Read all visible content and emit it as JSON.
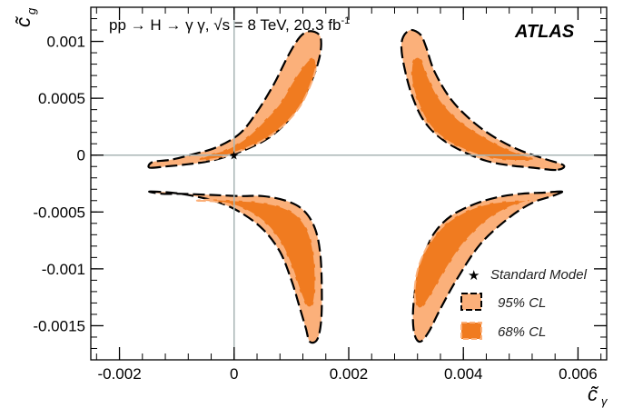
{
  "chart_data": {
    "type": "contour",
    "header": "pp → H → γ γ, √s = 8 TeV, 20.3 fb",
    "header_superscript": "-1",
    "experiment": "ATLAS",
    "xlabel": "c̃",
    "xlabel_sub": "γ",
    "ylabel": "c̃",
    "ylabel_sub": "g",
    "xlim": [
      -0.0025,
      0.0065
    ],
    "ylim": [
      -0.0018,
      0.0013
    ],
    "x_ticks": [
      -0.002,
      0,
      0.002,
      0.004,
      0.006
    ],
    "x_tick_labels": [
      "-0.002",
      "0",
      "0.002",
      "0.004",
      "0.006"
    ],
    "y_ticks": [
      -0.0015,
      -0.001,
      -0.0005,
      0,
      0.0005,
      0.001
    ],
    "y_tick_labels": [
      "-0.0015",
      "-0.001",
      "-0.0005",
      "0",
      "0.0005",
      "0.001"
    ],
    "reference_lines": {
      "x": 0,
      "y": 0
    },
    "standard_model_point": {
      "x": 0,
      "y": 0,
      "label": "Standard Model"
    },
    "colors": {
      "cl95": "#fbb07a",
      "cl68": "#f07b20",
      "outline": "#000000",
      "refline": "#a8b5b5"
    },
    "legend": {
      "placement": "bottom-right",
      "entries": [
        {
          "key": "sm",
          "label": "Standard Model"
        },
        {
          "key": "cl95",
          "label": "95% CL"
        },
        {
          "key": "cl68",
          "label": "68% CL"
        }
      ]
    },
    "regions": [
      {
        "name": "upper-left",
        "cl95": [
          [
            -0.00148,
            -0.00011
          ],
          [
            -0.0012,
            -0.0001
          ],
          [
            -0.0008,
            -8e-05
          ],
          [
            -0.0004,
            -5e-05
          ],
          [
            0,
            1e-05
          ],
          [
            0.0003,
            7e-05
          ],
          [
            0.0006,
            0.00015
          ],
          [
            0.0009,
            0.00028
          ],
          [
            0.00115,
            0.00045
          ],
          [
            0.00135,
            0.00065
          ],
          [
            0.00148,
            0.00084
          ],
          [
            0.00152,
            0.00098
          ],
          [
            0.00148,
            0.00106
          ],
          [
            0.00132,
            0.00109
          ],
          [
            0.00115,
            0.00104
          ],
          [
            0.00095,
            0.00088
          ],
          [
            0.0007,
            0.00063
          ],
          [
            0.0004,
            0.00038
          ],
          [
            0.0001,
            0.00019
          ],
          [
            -0.0003,
            7e-05
          ],
          [
            -0.0007,
            1e-05
          ],
          [
            -0.0011,
            -4e-05
          ],
          [
            -0.00142,
            -6e-05
          ]
        ],
        "cl68": [
          [
            -0.00065,
            -5e-05
          ],
          [
            -0.0003,
            -3e-05
          ],
          [
            0,
            2e-05
          ],
          [
            0.0003,
            8e-05
          ],
          [
            0.0006,
            0.00016
          ],
          [
            0.0009,
            0.00028
          ],
          [
            0.00115,
            0.00043
          ],
          [
            0.00132,
            0.0006
          ],
          [
            0.00142,
            0.00075
          ],
          [
            0.00142,
            0.00084
          ],
          [
            0.00133,
            0.00085
          ],
          [
            0.0012,
            0.00078
          ],
          [
            0.001,
            0.00063
          ],
          [
            0.0008,
            0.00046
          ],
          [
            0.0005,
            0.00029
          ],
          [
            0.0002,
            0.00015
          ],
          [
            -0.0001,
            6e-05
          ],
          [
            -0.0004,
            1e-05
          ],
          [
            -0.0006,
            -3e-05
          ]
        ],
        "sm_point_inside": true
      },
      {
        "name": "upper-right",
        "cl95": [
          [
            0.00562,
            -0.00013
          ],
          [
            0.0052,
            -0.00011
          ],
          [
            0.0048,
            -9e-05
          ],
          [
            0.0044,
            -5e-05
          ],
          [
            0.004,
            3e-05
          ],
          [
            0.0036,
            0.00015
          ],
          [
            0.0033,
            0.00031
          ],
          [
            0.0031,
            0.00053
          ],
          [
            0.00298,
            0.00075
          ],
          [
            0.00292,
            0.00093
          ],
          [
            0.00295,
            0.00104
          ],
          [
            0.00308,
            0.0011
          ],
          [
            0.00325,
            0.00106
          ],
          [
            0.00335,
            0.00095
          ],
          [
            0.0035,
            0.00073
          ],
          [
            0.0038,
            0.00048
          ],
          [
            0.0042,
            0.00028
          ],
          [
            0.0046,
            0.00014
          ],
          [
            0.005,
            4e-05
          ],
          [
            0.0054,
            -3e-05
          ],
          [
            0.00575,
            -9e-05
          ]
        ],
        "cl68": [
          [
            0.0049,
            -5e-05
          ],
          [
            0.0045,
            -3e-05
          ],
          [
            0.0041,
            3e-05
          ],
          [
            0.0037,
            0.00013
          ],
          [
            0.0034,
            0.00027
          ],
          [
            0.0032,
            0.00047
          ],
          [
            0.0031,
            0.00065
          ],
          [
            0.0031,
            0.0008
          ],
          [
            0.00317,
            0.00086
          ],
          [
            0.00327,
            0.00084
          ],
          [
            0.00337,
            0.00071
          ],
          [
            0.00358,
            0.0005
          ],
          [
            0.0039,
            0.00032
          ],
          [
            0.0043,
            0.00018
          ],
          [
            0.0047,
            7e-05
          ],
          [
            0.005,
            1e-05
          ],
          [
            0.00525,
            -4e-05
          ]
        ],
        "sm_point_inside": false
      },
      {
        "name": "lower-left",
        "cl95": [
          [
            -0.00148,
            -0.00032
          ],
          [
            -0.0011,
            -0.00033
          ],
          [
            -0.0007,
            -0.00036
          ],
          [
            -0.0003,
            -0.00041
          ],
          [
            0.0001,
            -0.0005
          ],
          [
            0.0005,
            -0.00065
          ],
          [
            0.0008,
            -0.00085
          ],
          [
            0.001,
            -0.0011
          ],
          [
            0.00115,
            -0.00135
          ],
          [
            0.00125,
            -0.00152
          ],
          [
            0.00132,
            -0.00164
          ],
          [
            0.00145,
            -0.00162
          ],
          [
            0.00152,
            -0.00145
          ],
          [
            0.00153,
            -0.00115
          ],
          [
            0.0015,
            -0.00085
          ],
          [
            0.0014,
            -0.00063
          ],
          [
            0.0012,
            -0.00048
          ],
          [
            0.0009,
            -0.0004
          ],
          [
            0.0005,
            -0.00036
          ],
          [
            0.0001,
            -0.00036
          ],
          [
            -0.0004,
            -0.00035
          ],
          [
            -0.0009,
            -0.00034
          ],
          [
            -0.00125,
            -0.00034
          ]
        ],
        "cl68": [
          [
            -0.00065,
            -0.0004
          ],
          [
            -0.0003,
            -0.00041
          ],
          [
            0.0001,
            -0.00046
          ],
          [
            0.0005,
            -0.00058
          ],
          [
            0.0008,
            -0.00076
          ],
          [
            0.001,
            -0.00098
          ],
          [
            0.00115,
            -0.0012
          ],
          [
            0.00127,
            -0.00133
          ],
          [
            0.00138,
            -0.00131
          ],
          [
            0.00142,
            -0.00115
          ],
          [
            0.0014,
            -0.0009
          ],
          [
            0.0013,
            -0.00068
          ],
          [
            0.0011,
            -0.00053
          ],
          [
            0.0008,
            -0.00045
          ],
          [
            0.0004,
            -0.00041
          ],
          [
            0.0001,
            -0.0004
          ],
          [
            -0.0003,
            -0.00039
          ]
        ],
        "sm_point_inside": false
      },
      {
        "name": "lower-right",
        "cl95": [
          [
            0.00572,
            -0.00032
          ],
          [
            0.0054,
            -0.00033
          ],
          [
            0.005,
            -0.00034
          ],
          [
            0.0046,
            -0.00037
          ],
          [
            0.0042,
            -0.00043
          ],
          [
            0.0038,
            -0.00053
          ],
          [
            0.0035,
            -0.00068
          ],
          [
            0.0033,
            -0.0009
          ],
          [
            0.00317,
            -0.00115
          ],
          [
            0.00312,
            -0.0014
          ],
          [
            0.00315,
            -0.00158
          ],
          [
            0.00325,
            -0.00164
          ],
          [
            0.0034,
            -0.00155
          ],
          [
            0.0036,
            -0.00135
          ],
          [
            0.0039,
            -0.00108
          ],
          [
            0.0043,
            -0.00078
          ],
          [
            0.0048,
            -0.00055
          ],
          [
            0.0052,
            -0.00042
          ],
          [
            0.00555,
            -0.00036
          ]
        ],
        "cl68": [
          [
            0.0049,
            -0.0004
          ],
          [
            0.0045,
            -0.00042
          ],
          [
            0.0041,
            -0.00048
          ],
          [
            0.0037,
            -0.0006
          ],
          [
            0.0034,
            -0.00078
          ],
          [
            0.00322,
            -0.00098
          ],
          [
            0.00315,
            -0.00118
          ],
          [
            0.00318,
            -0.00132
          ],
          [
            0.00328,
            -0.00134
          ],
          [
            0.00345,
            -0.00122
          ],
          [
            0.00368,
            -0.00102
          ],
          [
            0.004,
            -0.00078
          ],
          [
            0.0044,
            -0.00058
          ],
          [
            0.0048,
            -0.00046
          ],
          [
            0.00515,
            -0.0004
          ]
        ],
        "sm_point_inside": false
      }
    ]
  }
}
